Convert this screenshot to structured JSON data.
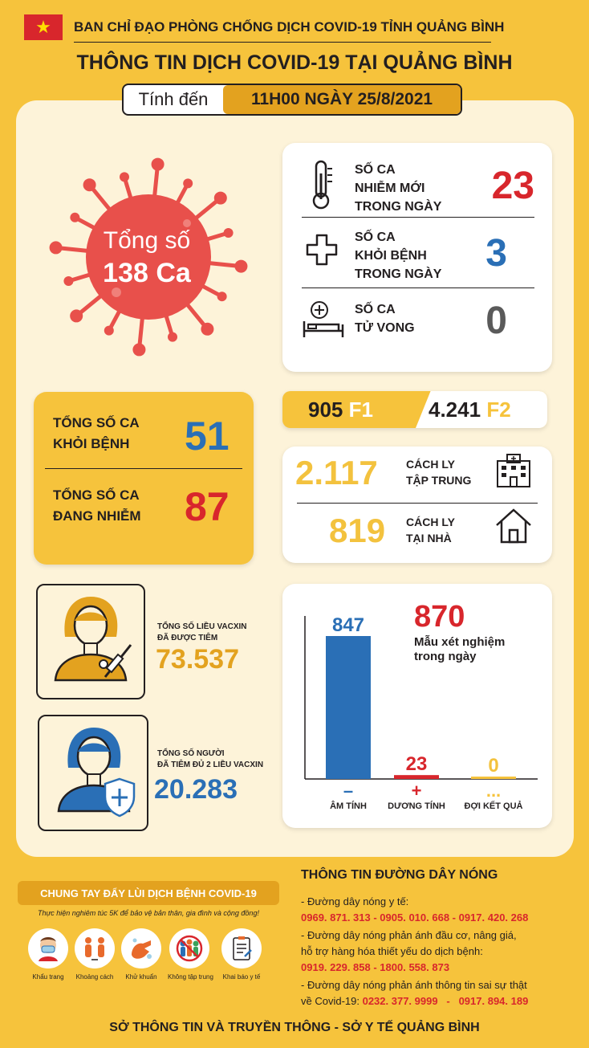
{
  "header": {
    "organization": "BAN CHỈ ĐẠO PHÒNG CHỐNG DỊCH COVID-19 TỈNH QUẢNG BÌNH",
    "title": "THÔNG TIN DỊCH COVID-19 TẠI QUẢNG BÌNH",
    "date_label": "Tính đến",
    "date_value": "11H00 NGÀY 25/8/2021"
  },
  "total_cases": {
    "label": "Tổng số",
    "value": "138 Ca"
  },
  "daily": {
    "new": {
      "label_lines": [
        "SỐ CA",
        "NHIỄM MỚI",
        "TRONG NGÀY"
      ],
      "value": "23",
      "icon": "thermometer-icon"
    },
    "recovered": {
      "label_lines": [
        "SỐ CA",
        "KHỎI BỆNH",
        "TRONG NGÀY"
      ],
      "value": "3",
      "icon": "medical-cross-icon"
    },
    "deaths": {
      "label_lines": [
        "SỐ CA",
        "TỬ VONG"
      ],
      "value": "0",
      "icon": "hospital-bed-icon"
    }
  },
  "totals": {
    "recovered": {
      "label_lines": [
        "TỔNG SỐ CA",
        "KHỎI BỆNH"
      ],
      "value": "51"
    },
    "active": {
      "label_lines": [
        "TỔNG SỐ CA",
        "ĐANG NHIỄM"
      ],
      "value": "87"
    }
  },
  "contacts": {
    "f1": {
      "value": "905",
      "label": "F1"
    },
    "f2": {
      "value": "4.241",
      "label": "F2"
    }
  },
  "quarantine": {
    "centralized": {
      "value": "2.117",
      "label_lines": [
        "CÁCH LY",
        "TẬP TRUNG"
      ],
      "icon": "hospital-building-icon"
    },
    "home": {
      "value": "819",
      "label_lines": [
        "CÁCH LY",
        "TẠI NHÀ"
      ],
      "icon": "house-icon"
    }
  },
  "vaccine": {
    "doses": {
      "label_lines": [
        "TỔNG SỐ LIỀU VACXIN",
        "ĐÃ ĐƯỢC TIÊM"
      ],
      "value": "73.537"
    },
    "fully": {
      "label_lines": [
        "TỔNG SỐ NGƯỜI",
        "ĐÃ TIÊM ĐỦ 2 LIỀU VACXIN"
      ],
      "value": "20.283"
    }
  },
  "tests": {
    "total": "870",
    "total_label_lines": [
      "Mẫu xét nghiệm",
      "trong ngày"
    ],
    "symbols": [
      "–",
      "+",
      "..."
    ]
  },
  "chart_data": {
    "type": "bar",
    "categories": [
      "ÂM TÍNH",
      "DƯƠNG TÍNH",
      "ĐỢI KẾT QUẢ"
    ],
    "values": [
      847,
      23,
      0
    ],
    "colors": [
      "#2a6fb6",
      "#d8262c",
      "#f6c33c"
    ],
    "title": "",
    "xlabel": "",
    "ylabel": ""
  },
  "campaign": {
    "title": "CHUNG TAY ĐẨY LÙI DỊCH BỆNH COVID-19",
    "subtitle": "Thực hiện nghiêm túc 5K để bảo vệ bản thân, gia đình và cộng đồng!",
    "items": [
      {
        "label": "Khẩu trang",
        "icon": "face-mask-icon"
      },
      {
        "label": "Khoảng cách",
        "icon": "distance-icon"
      },
      {
        "label": "Khử khuẩn",
        "icon": "hand-wash-icon"
      },
      {
        "label": "Không tập trung",
        "icon": "no-gathering-icon"
      },
      {
        "label": "Khai báo y tế",
        "icon": "health-declaration-icon"
      }
    ]
  },
  "hotline": {
    "title": "THÔNG TIN ĐƯỜNG DÂY NÓNG",
    "line1": "- Đường dây nóng y tế:",
    "numbers1": "0969. 871. 313   -   0905. 010. 668   -   0917. 420. 268",
    "line2a": "- Đường dây nóng phản ánh đầu cơ, nâng giá,",
    "line2b": "hỗ trợ hàng hóa thiết yếu do dịch bệnh:",
    "numbers2": "0919. 229. 858   -   1800. 558. 873",
    "line3a": "- Đường dây nóng phản ánh thông tin sai sự thật",
    "line3b_prefix": "về Covid-19: ",
    "numbers3": "0232. 377. 9999   -   0917. 894. 189"
  },
  "footer": "SỞ THÔNG TIN VÀ TRUYỀN THÔNG - SỞ Y TẾ QUẢNG BÌNH"
}
